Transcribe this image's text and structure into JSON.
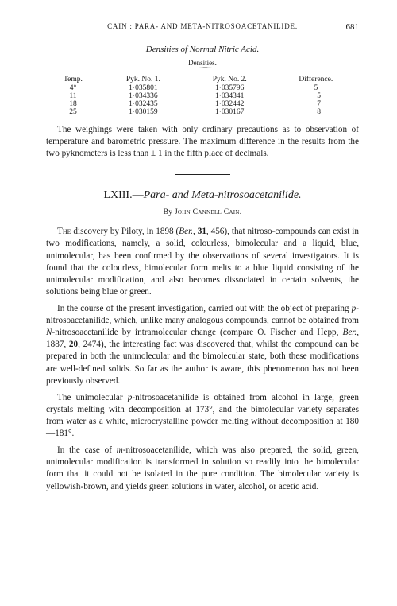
{
  "header": {
    "running": "CAIN : PARA- AND META-NITROSOACETANILIDE.",
    "page_number": "681"
  },
  "table": {
    "title": "Densities of Normal Nitric Acid.",
    "sup_label": "Densities.",
    "columns": [
      "Temp.",
      "Pyk. No. 1.",
      "Pyk. No. 2.",
      "Difference."
    ],
    "rows": [
      [
        "4°",
        "1·035801",
        "1·035796",
        "5"
      ],
      [
        "11",
        "1·034336",
        "1·034341",
        "− 5"
      ],
      [
        "18",
        "1·032435",
        "1·032442",
        "− 7"
      ],
      [
        "25",
        "1·030159",
        "1·030167",
        "− 8"
      ]
    ]
  },
  "para1": "The weighings were taken with only ordinary precautions as to observation of temperature and barometric pressure. The maximum difference in the results from the two pyknometers is less than ± 1 in the fifth place of decimals.",
  "article": {
    "number": "LXIII.—",
    "title_italic": "Para- and Meta-nitrosoacetanilide.",
    "byline_prefix": "By ",
    "author": "John Cannell Cain."
  },
  "b1a": "The",
  "b1b": " discovery by Piloty, in 1898 (",
  "b1c": "Ber.",
  "b1d": ", ",
  "b1e": "31",
  "b1f": ", 456), that nitroso-compounds can exist in two modifications, namely, a solid, colourless, bimolecular and a liquid, blue, unimolecular, has been confirmed by the observations of several investigators. It is found that the colourless, bimolecular form melts to a blue liquid consisting of the unimolecular modification, and also becomes dissociated in certain solvents, the solutions being blue or green.",
  "b2a": "In the course of the present investigation, carried out with the object of preparing ",
  "b2b": "p",
  "b2c": "-nitrosoacetanilide, which, unlike many analogous compounds, cannot be obtained from ",
  "b2d": "N",
  "b2e": "-nitrosoacetanilide by intramolecular change (compare O. Fischer and Hepp, ",
  "b2f": "Ber.",
  "b2g": ", 1887, ",
  "b2h": "20",
  "b2i": ", 2474), the interesting fact was discovered that, whilst the compound can be prepared in both the unimolecular and the bimolecular state, both these modifications are well-defined solids. So far as the author is aware, this phenomenon has not been previously observed.",
  "b3a": "The unimolecular ",
  "b3b": "p",
  "b3c": "-nitrosoacetanilide is obtained from alcohol in large, green crystals melting with decomposition at 173°, and the bimolecular variety separates from water as a white, microcrystalline powder melting without decomposition at 180—181°.",
  "b4a": "In the case of ",
  "b4b": "m",
  "b4c": "-nitrosoacetanilide, which was also prepared, the solid, green, unimolecular modification is transformed in solution so readily into the bimolecular form that it could not be isolated in the pure condition. The bimolecular variety is yellowish-brown, and yields green solutions in water, alcohol, or acetic acid."
}
